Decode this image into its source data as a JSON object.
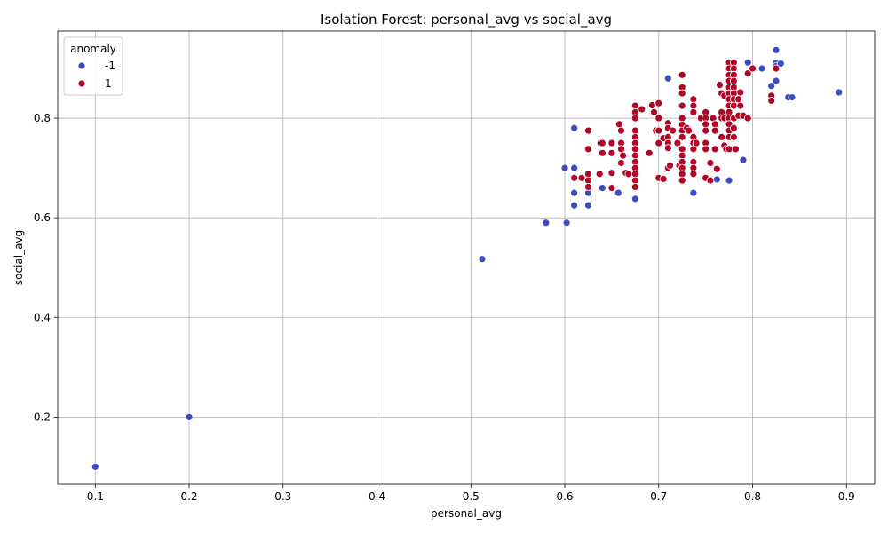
{
  "chart_data": {
    "type": "scatter",
    "title": "Isolation Forest: personal_avg vs social_avg",
    "xlabel": "personal_avg",
    "ylabel": "social_avg",
    "xlim": [
      0.06,
      0.93
    ],
    "ylim": [
      0.065,
      0.975
    ],
    "xticks": [
      0.1,
      0.2,
      0.3,
      0.4,
      0.5,
      0.6,
      0.7,
      0.8,
      0.9
    ],
    "xtick_labels": [
      "0.1",
      "0.2",
      "0.3",
      "0.4",
      "0.5",
      "0.6",
      "0.7",
      "0.8",
      "0.9"
    ],
    "yticks": [
      0.2,
      0.4,
      0.6,
      0.8
    ],
    "ytick_labels": [
      "0.2",
      "0.4",
      "0.6",
      "0.8"
    ],
    "grid": true,
    "legend": {
      "title": "anomaly",
      "placement": "top-left"
    },
    "series": [
      {
        "name": "-1",
        "color": "#3b4cc0",
        "points": [
          [
            0.1,
            0.1
          ],
          [
            0.2,
            0.2
          ],
          [
            0.512,
            0.517
          ],
          [
            0.58,
            0.59
          ],
          [
            0.602,
            0.59
          ],
          [
            0.6,
            0.7
          ],
          [
            0.61,
            0.7
          ],
          [
            0.61,
            0.78
          ],
          [
            0.61,
            0.65
          ],
          [
            0.61,
            0.625
          ],
          [
            0.625,
            0.625
          ],
          [
            0.625,
            0.65
          ],
          [
            0.64,
            0.66
          ],
          [
            0.657,
            0.65
          ],
          [
            0.675,
            0.638
          ],
          [
            0.71,
            0.88
          ],
          [
            0.737,
            0.65
          ],
          [
            0.762,
            0.677
          ],
          [
            0.775,
            0.675
          ],
          [
            0.79,
            0.716
          ],
          [
            0.795,
            0.912
          ],
          [
            0.81,
            0.9
          ],
          [
            0.82,
            0.865
          ],
          [
            0.825,
            0.937
          ],
          [
            0.825,
            0.912
          ],
          [
            0.825,
            0.905
          ],
          [
            0.825,
            0.875
          ],
          [
            0.83,
            0.91
          ],
          [
            0.838,
            0.842
          ],
          [
            0.842,
            0.842
          ],
          [
            0.892,
            0.852
          ]
        ]
      },
      {
        "name": "1",
        "color": "#b40426",
        "points": [
          [
            0.61,
            0.68
          ],
          [
            0.618,
            0.68
          ],
          [
            0.625,
            0.775
          ],
          [
            0.625,
            0.688
          ],
          [
            0.625,
            0.675
          ],
          [
            0.625,
            0.662
          ],
          [
            0.625,
            0.738
          ],
          [
            0.637,
            0.688
          ],
          [
            0.638,
            0.75
          ],
          [
            0.64,
            0.75
          ],
          [
            0.64,
            0.73
          ],
          [
            0.65,
            0.75
          ],
          [
            0.65,
            0.73
          ],
          [
            0.65,
            0.66
          ],
          [
            0.65,
            0.69
          ],
          [
            0.658,
            0.788
          ],
          [
            0.66,
            0.775
          ],
          [
            0.66,
            0.75
          ],
          [
            0.66,
            0.738
          ],
          [
            0.66,
            0.71
          ],
          [
            0.662,
            0.725
          ],
          [
            0.665,
            0.69
          ],
          [
            0.668,
            0.688
          ],
          [
            0.675,
            0.825
          ],
          [
            0.675,
            0.812
          ],
          [
            0.675,
            0.8
          ],
          [
            0.675,
            0.775
          ],
          [
            0.675,
            0.762
          ],
          [
            0.675,
            0.75
          ],
          [
            0.675,
            0.738
          ],
          [
            0.675,
            0.725
          ],
          [
            0.675,
            0.712
          ],
          [
            0.675,
            0.7
          ],
          [
            0.675,
            0.688
          ],
          [
            0.675,
            0.675
          ],
          [
            0.675,
            0.662
          ],
          [
            0.682,
            0.818
          ],
          [
            0.69,
            0.73
          ],
          [
            0.693,
            0.826
          ],
          [
            0.695,
            0.812
          ],
          [
            0.697,
            0.775
          ],
          [
            0.7,
            0.83
          ],
          [
            0.7,
            0.8
          ],
          [
            0.7,
            0.775
          ],
          [
            0.7,
            0.75
          ],
          [
            0.7,
            0.68
          ],
          [
            0.705,
            0.76
          ],
          [
            0.705,
            0.678
          ],
          [
            0.71,
            0.79
          ],
          [
            0.71,
            0.78
          ],
          [
            0.71,
            0.762
          ],
          [
            0.71,
            0.75
          ],
          [
            0.71,
            0.74
          ],
          [
            0.71,
            0.7
          ],
          [
            0.712,
            0.705
          ],
          [
            0.715,
            0.775
          ],
          [
            0.72,
            0.75
          ],
          [
            0.722,
            0.705
          ],
          [
            0.725,
            0.887
          ],
          [
            0.725,
            0.862
          ],
          [
            0.725,
            0.85
          ],
          [
            0.725,
            0.825
          ],
          [
            0.725,
            0.8
          ],
          [
            0.725,
            0.787
          ],
          [
            0.725,
            0.775
          ],
          [
            0.725,
            0.762
          ],
          [
            0.725,
            0.738
          ],
          [
            0.725,
            0.725
          ],
          [
            0.725,
            0.712
          ],
          [
            0.725,
            0.7
          ],
          [
            0.725,
            0.688
          ],
          [
            0.725,
            0.675
          ],
          [
            0.73,
            0.78
          ],
          [
            0.732,
            0.775
          ],
          [
            0.737,
            0.838
          ],
          [
            0.737,
            0.825
          ],
          [
            0.737,
            0.812
          ],
          [
            0.737,
            0.762
          ],
          [
            0.737,
            0.75
          ],
          [
            0.737,
            0.738
          ],
          [
            0.737,
            0.712
          ],
          [
            0.737,
            0.7
          ],
          [
            0.737,
            0.688
          ],
          [
            0.74,
            0.75
          ],
          [
            0.745,
            0.8
          ],
          [
            0.75,
            0.812
          ],
          [
            0.75,
            0.8
          ],
          [
            0.75,
            0.788
          ],
          [
            0.75,
            0.775
          ],
          [
            0.75,
            0.75
          ],
          [
            0.75,
            0.738
          ],
          [
            0.75,
            0.68
          ],
          [
            0.755,
            0.71
          ],
          [
            0.755,
            0.675
          ],
          [
            0.758,
            0.8
          ],
          [
            0.76,
            0.788
          ],
          [
            0.76,
            0.775
          ],
          [
            0.76,
            0.738
          ],
          [
            0.762,
            0.698
          ],
          [
            0.765,
            0.867
          ],
          [
            0.767,
            0.85
          ],
          [
            0.767,
            0.812
          ],
          [
            0.767,
            0.8
          ],
          [
            0.767,
            0.762
          ],
          [
            0.77,
            0.845
          ],
          [
            0.77,
            0.8
          ],
          [
            0.77,
            0.745
          ],
          [
            0.772,
            0.738
          ],
          [
            0.775,
            0.912
          ],
          [
            0.775,
            0.9
          ],
          [
            0.775,
            0.887
          ],
          [
            0.775,
            0.875
          ],
          [
            0.775,
            0.862
          ],
          [
            0.775,
            0.85
          ],
          [
            0.775,
            0.838
          ],
          [
            0.775,
            0.825
          ],
          [
            0.775,
            0.812
          ],
          [
            0.775,
            0.8
          ],
          [
            0.775,
            0.788
          ],
          [
            0.775,
            0.775
          ],
          [
            0.775,
            0.762
          ],
          [
            0.775,
            0.738
          ],
          [
            0.78,
            0.912
          ],
          [
            0.78,
            0.9
          ],
          [
            0.78,
            0.887
          ],
          [
            0.78,
            0.875
          ],
          [
            0.78,
            0.862
          ],
          [
            0.78,
            0.85
          ],
          [
            0.78,
            0.838
          ],
          [
            0.78,
            0.825
          ],
          [
            0.78,
            0.8
          ],
          [
            0.78,
            0.78
          ],
          [
            0.78,
            0.762
          ],
          [
            0.782,
            0.738
          ],
          [
            0.785,
            0.838
          ],
          [
            0.785,
            0.805
          ],
          [
            0.787,
            0.852
          ],
          [
            0.787,
            0.825
          ],
          [
            0.79,
            0.805
          ],
          [
            0.795,
            0.89
          ],
          [
            0.795,
            0.8
          ],
          [
            0.8,
            0.9
          ],
          [
            0.82,
            0.845
          ],
          [
            0.82,
            0.835
          ],
          [
            0.825,
            0.9
          ]
        ]
      }
    ]
  }
}
